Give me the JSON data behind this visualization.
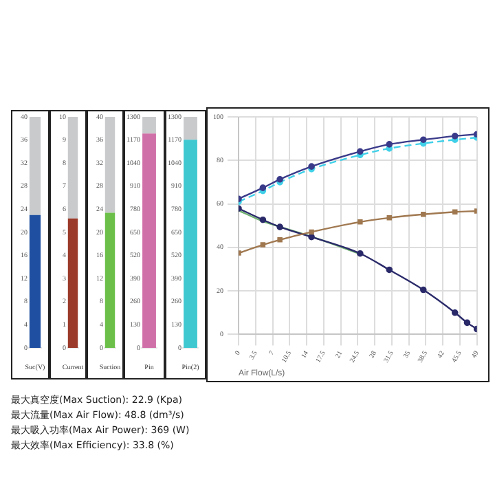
{
  "chart_data": [
    {
      "type": "bar",
      "stacked": true,
      "categories": [
        "Suc(V)"
      ],
      "series": [
        {
          "color": "#1f4fa0",
          "values": [
            23
          ]
        },
        {
          "color": "#c8cacc",
          "values": [
            17
          ]
        }
      ],
      "ylim": [
        0,
        40
      ],
      "yticks": [
        0,
        4,
        8,
        12,
        16,
        20,
        24,
        28,
        32,
        36,
        40
      ]
    },
    {
      "type": "bar",
      "stacked": true,
      "categories": [
        "Current"
      ],
      "series": [
        {
          "color": "#9b3a2a",
          "values": [
            5.6
          ]
        },
        {
          "color": "#c8cacc",
          "values": [
            4.4
          ]
        }
      ],
      "ylim": [
        0,
        10
      ],
      "yticks": [
        0,
        1,
        2,
        3,
        4,
        5,
        6,
        7,
        8,
        9,
        10
      ]
    },
    {
      "type": "bar",
      "stacked": true,
      "categories": [
        "Suction"
      ],
      "series": [
        {
          "color": "#6cc04a",
          "values": [
            23.4
          ]
        },
        {
          "color": "#c8cacc",
          "values": [
            16.6
          ]
        }
      ],
      "ylim": [
        0,
        40
      ],
      "yticks": [
        0,
        4,
        8,
        12,
        16,
        20,
        24,
        28,
        32,
        36,
        40
      ]
    },
    {
      "type": "bar",
      "stacked": true,
      "categories": [
        "Pin"
      ],
      "series": [
        {
          "color": "#d070a8",
          "values": [
            1206
          ]
        },
        {
          "color": "#c8cacc",
          "values": [
            94
          ]
        }
      ],
      "ylim": [
        0,
        1300
      ],
      "yticks": [
        0,
        130,
        260,
        390,
        520,
        650,
        780,
        910,
        1040,
        1170,
        1300
      ]
    },
    {
      "type": "bar",
      "stacked": true,
      "categories": [
        "Pin(2)"
      ],
      "series": [
        {
          "color": "#40c8d0",
          "values": [
            1171
          ]
        },
        {
          "color": "#c8cacc",
          "values": [
            129
          ]
        }
      ],
      "ylim": [
        0,
        1300
      ],
      "yticks": [
        0,
        130,
        260,
        390,
        520,
        650,
        780,
        910,
        1040,
        1170,
        1300
      ]
    },
    {
      "type": "line",
      "xlabel": "Air Flow(L/s)",
      "grid": true,
      "marker": "circle",
      "xlim": [
        0,
        49
      ],
      "xticks": [
        0,
        3.5,
        7,
        10.5,
        14,
        17.5,
        21,
        24.5,
        28,
        31.5,
        35,
        38.5,
        42,
        45.5,
        49
      ],
      "ylim": [
        0,
        100
      ],
      "yticks": [
        0,
        20,
        40,
        60,
        80,
        100
      ],
      "series": [
        {
          "color": "#3a3a8a",
          "x": [
            0,
            5,
            8.5,
            15,
            25,
            31,
            38,
            44.5,
            49
          ],
          "values": [
            62.3,
            67.4,
            71.3,
            77.2,
            84.1,
            87.4,
            89.5,
            91.2,
            92
          ]
        },
        {
          "color": "#40d0e8",
          "line_style": "dashed",
          "x": [
            0,
            5,
            8.5,
            15,
            25,
            31,
            38,
            44.5,
            49
          ],
          "values": [
            61,
            66,
            70,
            76,
            82.5,
            85.5,
            87.8,
            89.5,
            90.5
          ]
        },
        {
          "color": "#a07850",
          "marker": "square",
          "x": [
            0,
            5,
            8.5,
            15,
            25,
            31,
            38,
            44.5,
            49
          ],
          "values": [
            37.4,
            41.2,
            43.5,
            47.1,
            51.7,
            53.6,
            55.2,
            56.3,
            56.7
          ]
        },
        {
          "color": "#2a2a6a",
          "x": [
            0,
            5,
            8.5,
            15,
            25,
            31,
            38,
            44.5,
            47,
            49
          ],
          "values": [
            57.9,
            52.7,
            49.4,
            44.8,
            37.2,
            29.7,
            20.5,
            10,
            5.4,
            2.5
          ]
        },
        {
          "color": "#70b070",
          "marker": "none",
          "x": [
            0,
            5,
            8.5,
            15,
            25
          ],
          "values": [
            57,
            52,
            49.5,
            45,
            37
          ]
        }
      ],
      "annotations": [
        "最大真空度(Max Suction): 22.9 (Kpa)",
        "最大流量(Max Air Flow): 48.8 (dm³/s)",
        "最大吸入功率(Max Air Power): 369 (W)",
        "最大效率(Max Efficiency): 33.8 (%)"
      ]
    }
  ]
}
